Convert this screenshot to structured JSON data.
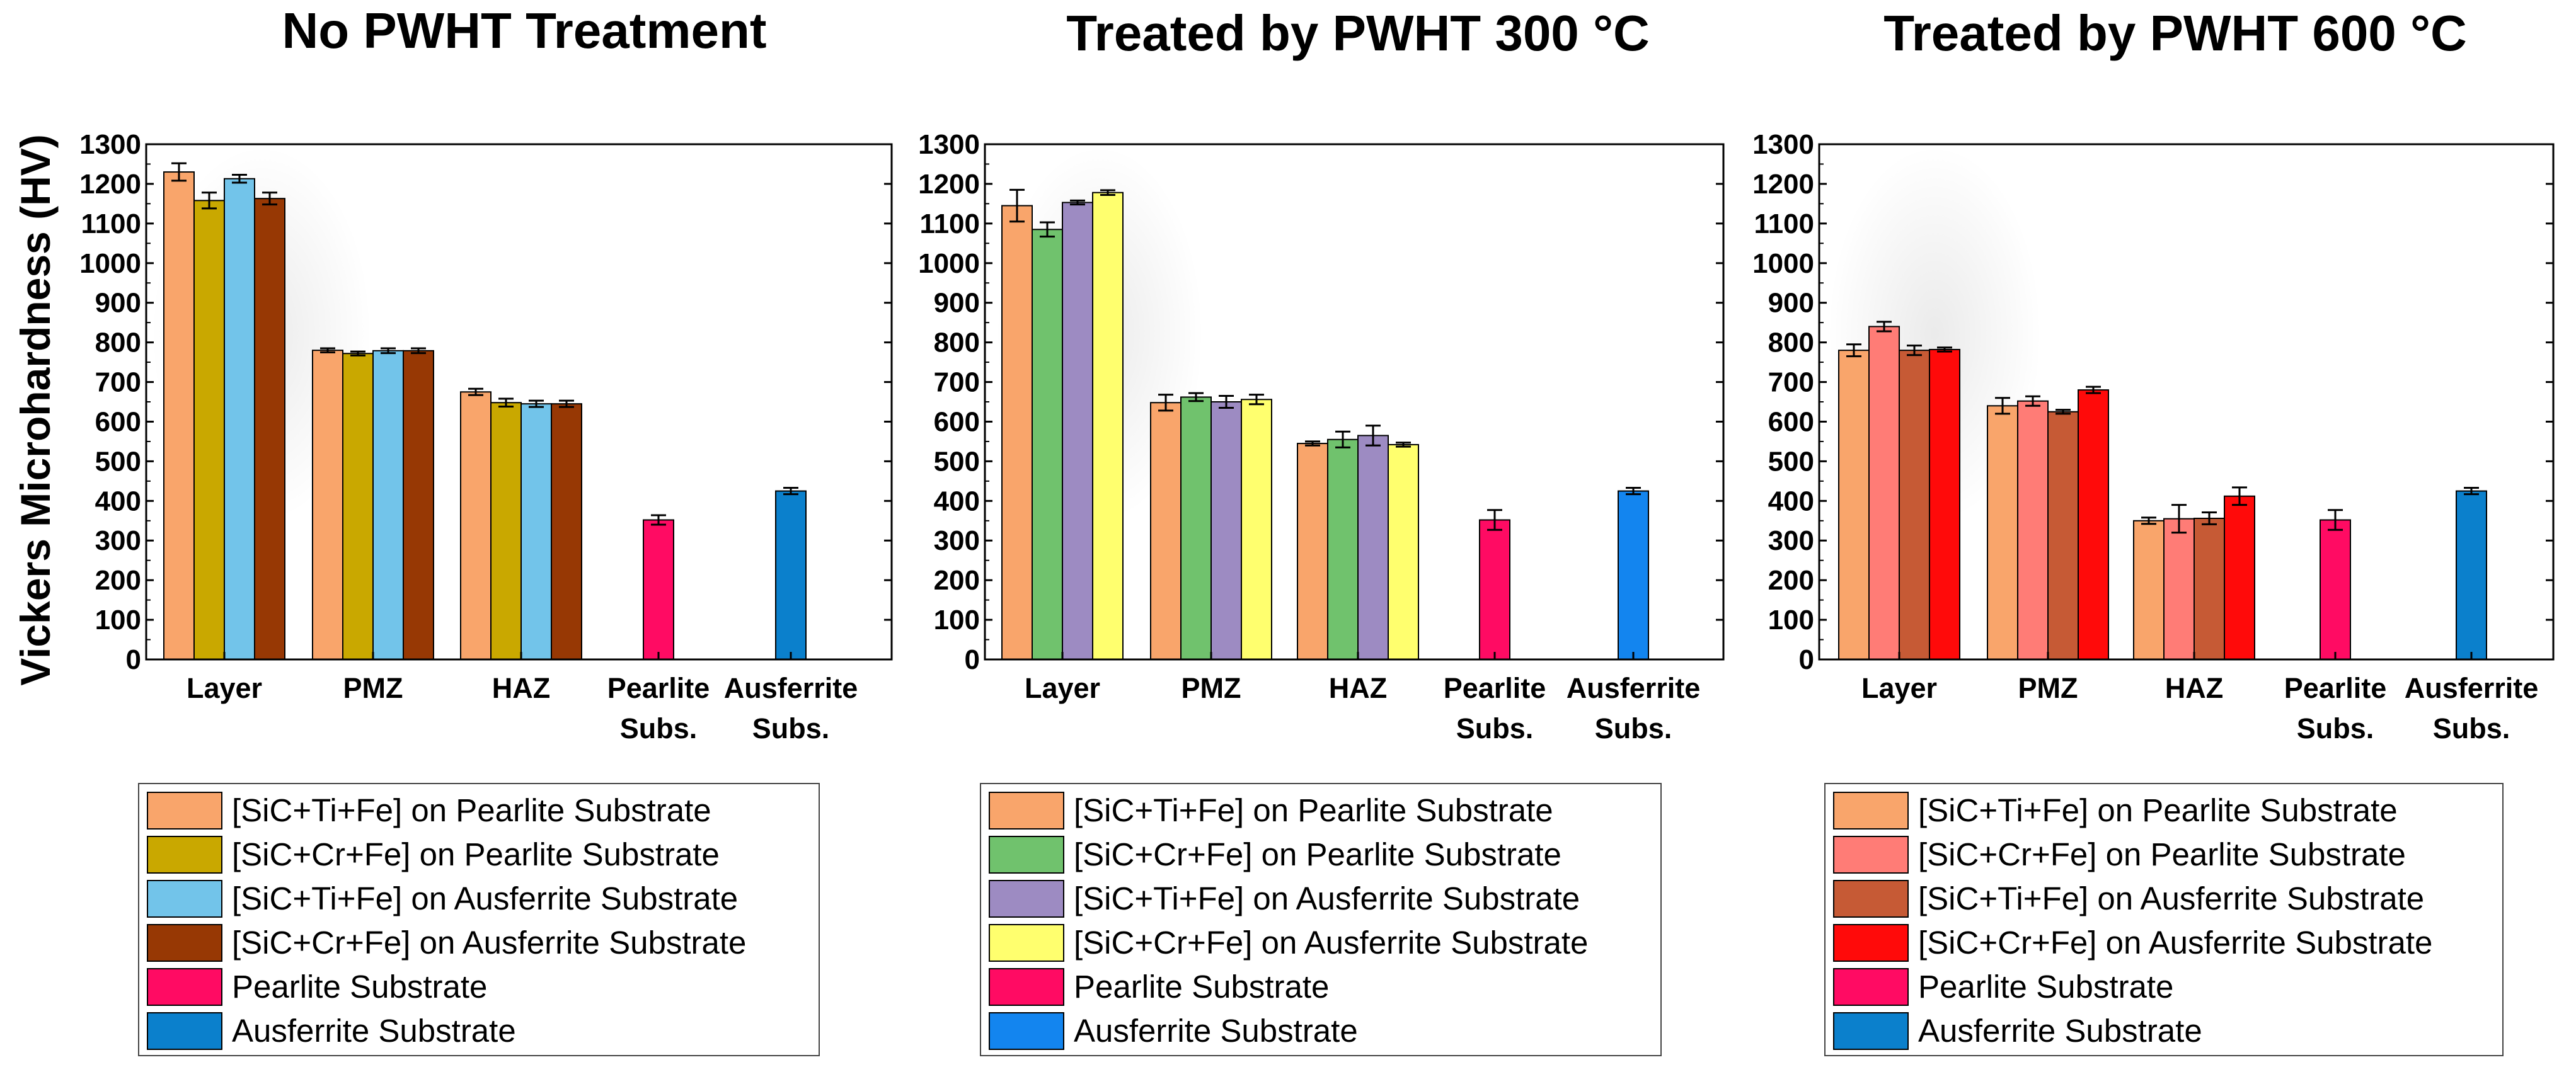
{
  "chart_data": [
    {
      "type": "bar",
      "title": "No PWHT Treatment",
      "ylabel": "Vickers Microhardness (HV)",
      "xlabel": "",
      "ylim": [
        0,
        1300
      ],
      "ytick_step": 100,
      "categories": [
        [
          "Layer"
        ],
        [
          "PMZ"
        ],
        [
          "HAZ"
        ],
        [
          "Pearlite",
          "Subs."
        ],
        [
          "Ausferrite",
          "Subs."
        ]
      ],
      "series": [
        {
          "name": "[SiC+Ti+Fe] on Pearlite Substrate",
          "color": "#f9a56b",
          "values": [
            1230,
            780,
            675,
            null,
            null
          ],
          "errors": [
            22,
            5,
            8,
            null,
            null
          ]
        },
        {
          "name": "[SiC+Cr+Fe] on Pearlite Substrate",
          "color": "#c9a800",
          "values": [
            1158,
            772,
            648,
            null,
            null
          ],
          "errors": [
            20,
            5,
            10,
            null,
            null
          ]
        },
        {
          "name": "[SiC+Ti+Fe] on Ausferrite Substrate",
          "color": "#72c4ea",
          "values": [
            1213,
            779,
            645,
            null,
            null
          ],
          "errors": [
            10,
            6,
            8,
            null,
            null
          ]
        },
        {
          "name": "[SiC+Cr+Fe] on Ausferrite Substrate",
          "color": "#973804",
          "values": [
            1163,
            779,
            645,
            null,
            null
          ],
          "errors": [
            15,
            6,
            8,
            null,
            null
          ]
        },
        {
          "name": "Pearlite Substrate",
          "color": "#ff0b63",
          "values": [
            null,
            null,
            null,
            352,
            null
          ],
          "errors": [
            null,
            null,
            null,
            12,
            null
          ]
        },
        {
          "name": "Ausferrite Substrate",
          "color": "#0b80cc",
          "values": [
            null,
            null,
            null,
            null,
            425
          ],
          "errors": [
            null,
            null,
            null,
            null,
            8
          ]
        }
      ]
    },
    {
      "type": "bar",
      "title": "Treated by PWHT 300 °C",
      "ylabel": "",
      "xlabel": "",
      "ylim": [
        0,
        1300
      ],
      "ytick_step": 100,
      "categories": [
        [
          "Layer"
        ],
        [
          "PMZ"
        ],
        [
          "HAZ"
        ],
        [
          "Pearlite",
          "Subs."
        ],
        [
          "Ausferrite",
          "Subs."
        ]
      ],
      "series": [
        {
          "name": "[SiC+Ti+Fe] on Pearlite Substrate",
          "color": "#f9a56b",
          "values": [
            1145,
            648,
            545,
            null,
            null
          ],
          "errors": [
            40,
            20,
            5,
            null,
            null
          ]
        },
        {
          "name": "[SiC+Cr+Fe] on Pearlite Substrate",
          "color": "#70c26d",
          "values": [
            1085,
            662,
            555,
            null,
            null
          ],
          "errors": [
            18,
            10,
            20,
            null,
            null
          ]
        },
        {
          "name": "[SiC+Ti+Fe] on Ausferrite Substrate",
          "color": "#9d8bc2",
          "values": [
            1153,
            650,
            565,
            null,
            null
          ],
          "errors": [
            5,
            15,
            25,
            null,
            null
          ]
        },
        {
          "name": "[SiC+Cr+Fe] on Ausferrite Substrate",
          "color": "#ffff6e",
          "values": [
            1178,
            656,
            542,
            null,
            null
          ],
          "errors": [
            6,
            12,
            5,
            null,
            null
          ]
        },
        {
          "name": "Pearlite Substrate",
          "color": "#ff0b63",
          "values": [
            null,
            null,
            null,
            352,
            null
          ],
          "errors": [
            null,
            null,
            null,
            25,
            null
          ]
        },
        {
          "name": "Ausferrite Substrate",
          "color": "#1385ef",
          "values": [
            null,
            null,
            null,
            null,
            425
          ],
          "errors": [
            null,
            null,
            null,
            null,
            8
          ]
        }
      ]
    },
    {
      "type": "bar",
      "title": "Treated by PWHT 600 °C",
      "ylabel": "",
      "xlabel": "",
      "ylim": [
        0,
        1300
      ],
      "ytick_step": 100,
      "categories": [
        [
          "Layer"
        ],
        [
          "PMZ"
        ],
        [
          "HAZ"
        ],
        [
          "Pearlite",
          "Subs."
        ],
        [
          "Ausferrite",
          "Subs."
        ]
      ],
      "series": [
        {
          "name": "[SiC+Ti+Fe] on Pearlite Substrate",
          "color": "#f9a56b",
          "values": [
            780,
            640,
            350,
            null,
            null
          ],
          "errors": [
            15,
            20,
            8,
            null,
            null
          ]
        },
        {
          "name": "[SiC+Cr+Fe] on Pearlite Substrate",
          "color": "#ff7c76",
          "values": [
            840,
            652,
            355,
            null,
            null
          ],
          "errors": [
            12,
            12,
            35,
            null,
            null
          ]
        },
        {
          "name": "[SiC+Ti+Fe] on Ausferrite Substrate",
          "color": "#c65a35",
          "values": [
            780,
            625,
            356,
            null,
            null
          ],
          "errors": [
            12,
            5,
            15,
            null,
            null
          ]
        },
        {
          "name": "[SiC+Cr+Fe] on Ausferrite Substrate",
          "color": "#ff0a0a",
          "values": [
            782,
            680,
            412,
            null,
            null
          ],
          "errors": [
            5,
            8,
            22,
            null,
            null
          ]
        },
        {
          "name": "Pearlite Substrate",
          "color": "#ff0b63",
          "values": [
            null,
            null,
            null,
            352,
            null
          ],
          "errors": [
            null,
            null,
            null,
            25,
            null
          ]
        },
        {
          "name": "Ausferrite Substrate",
          "color": "#0b80cc",
          "values": [
            null,
            null,
            null,
            null,
            425
          ],
          "errors": [
            null,
            null,
            null,
            null,
            8
          ]
        }
      ]
    }
  ]
}
